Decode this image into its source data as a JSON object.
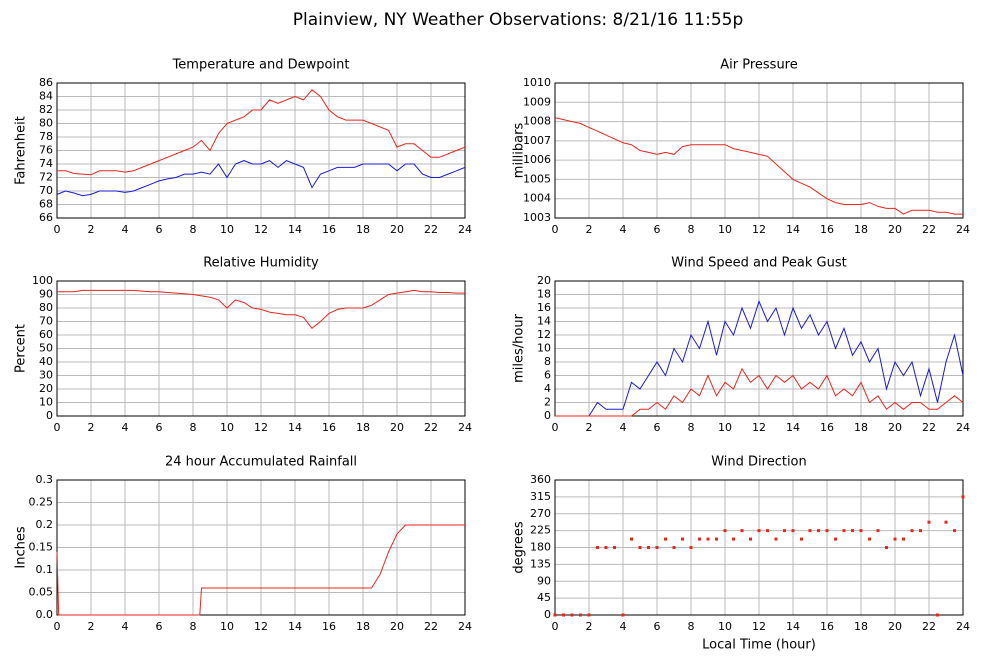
{
  "title": "Plainview, NY Weather Observations: 8/21/16 11:55p",
  "chart_data": [
    {
      "type": "line",
      "title": "Temperature and Dewpoint",
      "ylabel": "Fahrenheit",
      "x": [
        0,
        0.5,
        1,
        1.5,
        2,
        2.5,
        3,
        3.5,
        4,
        4.5,
        5,
        5.5,
        6,
        6.5,
        7,
        7.5,
        8,
        8.5,
        9,
        9.5,
        10,
        10.5,
        11,
        11.5,
        12,
        12.5,
        13,
        13.5,
        14,
        14.5,
        15,
        15.5,
        16,
        16.5,
        17,
        17.5,
        18,
        18.5,
        19,
        19.5,
        20,
        20.5,
        21,
        21.5,
        22,
        22.5,
        23,
        23.5,
        24
      ],
      "series": [
        {
          "color": "#e8261e",
          "values": [
            73,
            73,
            72.6,
            72.5,
            72.4,
            73,
            73,
            73,
            72.8,
            73,
            73.5,
            74,
            74.5,
            75,
            75.5,
            76,
            76.5,
            77.5,
            76,
            78.5,
            80,
            80.5,
            81,
            82,
            82,
            83.5,
            83,
            83.5,
            84,
            83.5,
            85,
            84,
            82,
            81,
            80.5,
            80.5,
            80.5,
            80,
            79.5,
            79,
            76.5,
            77,
            77,
            76,
            75,
            75,
            75.5,
            76,
            76.5
          ]
        },
        {
          "color": "#1a1ad6",
          "values": [
            69.5,
            70,
            69.7,
            69.3,
            69.5,
            70,
            70,
            70,
            69.8,
            70,
            70.5,
            71,
            71.5,
            71.8,
            72,
            72.5,
            72.5,
            72.8,
            72.5,
            74,
            72,
            74,
            74.5,
            74,
            74,
            74.5,
            73.5,
            74.5,
            74,
            73.5,
            70.5,
            72.5,
            73,
            73.5,
            73.5,
            73.5,
            74,
            74,
            74,
            74,
            73,
            74,
            74,
            72.5,
            72,
            72,
            72.5,
            73,
            73.5
          ]
        }
      ],
      "xlim": [
        0,
        24
      ],
      "xticks": [
        0,
        2,
        4,
        6,
        8,
        10,
        12,
        14,
        16,
        18,
        20,
        22,
        24
      ],
      "ylim": [
        66,
        86
      ],
      "yticks": [
        66,
        68,
        70,
        72,
        74,
        76,
        78,
        80,
        82,
        84,
        86
      ],
      "grid": true
    },
    {
      "type": "line",
      "title": "Air Pressure",
      "ylabel": "millibars",
      "x": [
        0,
        0.5,
        1,
        1.5,
        2,
        2.5,
        3,
        3.5,
        4,
        4.5,
        5,
        5.5,
        6,
        6.5,
        7,
        7.5,
        8,
        8.5,
        9,
        9.5,
        10,
        10.5,
        11,
        11.5,
        12,
        12.5,
        13,
        13.5,
        14,
        14.5,
        15,
        15.5,
        16,
        16.5,
        17,
        17.5,
        18,
        18.5,
        19,
        19.5,
        20,
        20.5,
        21,
        21.5,
        22,
        22.5,
        23,
        23.5,
        24
      ],
      "series": [
        {
          "color": "#e8261e",
          "values": [
            1008.2,
            1008.1,
            1008,
            1007.9,
            1007.7,
            1007.5,
            1007.3,
            1007.1,
            1006.9,
            1006.8,
            1006.5,
            1006.4,
            1006.3,
            1006.4,
            1006.3,
            1006.7,
            1006.8,
            1006.8,
            1006.8,
            1006.8,
            1006.8,
            1006.6,
            1006.5,
            1006.4,
            1006.3,
            1006.2,
            1005.8,
            1005.4,
            1005,
            1004.8,
            1004.6,
            1004.3,
            1004,
            1003.8,
            1003.7,
            1003.7,
            1003.7,
            1003.8,
            1003.6,
            1003.5,
            1003.5,
            1003.2,
            1003.4,
            1003.4,
            1003.4,
            1003.3,
            1003.3,
            1003.2,
            1003.2
          ]
        }
      ],
      "xlim": [
        0,
        24
      ],
      "xticks": [
        0,
        2,
        4,
        6,
        8,
        10,
        12,
        14,
        16,
        18,
        20,
        22,
        24
      ],
      "ylim": [
        1003,
        1010
      ],
      "yticks": [
        1003,
        1004,
        1005,
        1006,
        1007,
        1008,
        1009,
        1010
      ],
      "grid": true
    },
    {
      "type": "line",
      "title": "Relative Humidity",
      "ylabel": "Percent",
      "x": [
        0,
        0.5,
        1,
        1.5,
        2,
        2.5,
        3,
        3.5,
        4,
        4.5,
        5,
        5.5,
        6,
        6.5,
        7,
        7.5,
        8,
        8.5,
        9,
        9.5,
        10,
        10.5,
        11,
        11.5,
        12,
        12.5,
        13,
        13.5,
        14,
        14.5,
        15,
        15.5,
        16,
        16.5,
        17,
        17.5,
        18,
        18.5,
        19,
        19.5,
        20,
        20.5,
        21,
        21.5,
        22,
        22.5,
        23,
        23.5,
        24
      ],
      "series": [
        {
          "color": "#e8261e",
          "values": [
            92,
            92,
            92,
            93,
            93,
            93,
            93,
            93,
            93,
            93,
            92.5,
            92,
            92,
            91.5,
            91,
            90.5,
            90,
            89,
            88,
            86,
            80,
            86,
            84,
            80,
            79,
            77,
            76,
            75,
            75,
            73,
            65,
            70,
            76,
            79,
            80,
            80,
            80,
            82,
            86,
            90,
            91,
            92,
            93,
            92,
            92,
            91.5,
            91.5,
            91,
            91
          ]
        }
      ],
      "xlim": [
        0,
        24
      ],
      "xticks": [
        0,
        2,
        4,
        6,
        8,
        10,
        12,
        14,
        16,
        18,
        20,
        22,
        24
      ],
      "ylim": [
        0,
        100
      ],
      "yticks": [
        0,
        10,
        20,
        30,
        40,
        50,
        60,
        70,
        80,
        90,
        100
      ],
      "grid": true
    },
    {
      "type": "line",
      "title": "Wind Speed and Peak Gust",
      "ylabel": "miles/hour",
      "x": [
        0,
        0.5,
        1,
        1.5,
        2,
        2.5,
        3,
        3.5,
        4,
        4.5,
        5,
        5.5,
        6,
        6.5,
        7,
        7.5,
        8,
        8.5,
        9,
        9.5,
        10,
        10.5,
        11,
        11.5,
        12,
        12.5,
        13,
        13.5,
        14,
        14.5,
        15,
        15.5,
        16,
        16.5,
        17,
        17.5,
        18,
        18.5,
        19,
        19.5,
        20,
        20.5,
        21,
        21.5,
        22,
        22.5,
        23,
        23.5,
        24
      ],
      "series": [
        {
          "color": "#1a1ad6",
          "values": [
            0,
            0,
            0,
            0,
            0,
            2,
            1,
            1,
            1,
            5,
            4,
            6,
            8,
            6,
            10,
            8,
            12,
            10,
            14,
            9,
            14,
            12,
            16,
            13,
            17,
            14,
            16,
            12,
            16,
            13,
            15,
            12,
            14,
            10,
            13,
            9,
            11,
            8,
            10,
            4,
            8,
            6,
            8,
            3,
            7,
            2,
            8,
            12,
            6
          ]
        },
        {
          "color": "#e8261e",
          "values": [
            0,
            0,
            0,
            0,
            0,
            0,
            0,
            0,
            0,
            0,
            1,
            1,
            2,
            1,
            3,
            2,
            4,
            3,
            6,
            3,
            5,
            4,
            7,
            5,
            6,
            4,
            6,
            5,
            6,
            4,
            5,
            4,
            6,
            3,
            4,
            3,
            5,
            2,
            3,
            1,
            2,
            1,
            2,
            2,
            1,
            1,
            2,
            3,
            2
          ]
        }
      ],
      "xlim": [
        0,
        24
      ],
      "xticks": [
        0,
        2,
        4,
        6,
        8,
        10,
        12,
        14,
        16,
        18,
        20,
        22,
        24
      ],
      "ylim": [
        0,
        20
      ],
      "yticks": [
        0,
        2,
        4,
        6,
        8,
        10,
        12,
        14,
        16,
        18,
        20
      ],
      "grid": true
    },
    {
      "type": "line",
      "title": "24 hour Accumulated Rainfall",
      "ylabel": "Inches",
      "x": [
        0,
        0.1,
        8.4,
        8.5,
        18.5,
        19,
        19.5,
        20,
        20.5,
        24
      ],
      "series": [
        {
          "color": "#e8261e",
          "values": [
            0.14,
            0,
            0,
            0.06,
            0.06,
            0.09,
            0.14,
            0.18,
            0.2,
            0.2
          ]
        }
      ],
      "xlim": [
        0,
        24
      ],
      "xticks": [
        0,
        2,
        4,
        6,
        8,
        10,
        12,
        14,
        16,
        18,
        20,
        22,
        24
      ],
      "ylim": [
        0,
        0.3
      ],
      "yticks": [
        {
          "value": 0,
          "label": "0.0"
        },
        0.05,
        0.1,
        0.15,
        0.2,
        0.25,
        0.3
      ],
      "grid": true
    },
    {
      "type": "scatter",
      "title": "Wind Direction",
      "ylabel": "degrees",
      "xlabel": "Local Time (hour)",
      "x": [
        0,
        0.5,
        1,
        1.5,
        2,
        2.5,
        3,
        3.5,
        4,
        4.5,
        5,
        5.5,
        6,
        6.5,
        7,
        7.5,
        8,
        8.5,
        9,
        9.5,
        10,
        10.5,
        11,
        11.5,
        12,
        12.5,
        13,
        13.5,
        14,
        14.5,
        15,
        15.5,
        16,
        16.5,
        17,
        17.5,
        18,
        18.5,
        19,
        19.5,
        20,
        20.5,
        21,
        21.5,
        22,
        22.5,
        23,
        23.5,
        24
      ],
      "series": [
        {
          "color": "#e8261e",
          "values": [
            0,
            0,
            0,
            0,
            0,
            180,
            180,
            180,
            0,
            202.5,
            180,
            180,
            180,
            202.5,
            180,
            202.5,
            180,
            202.5,
            202.5,
            202.5,
            225,
            202.5,
            225,
            202.5,
            225,
            225,
            202.5,
            225,
            225,
            202.5,
            225,
            225,
            225,
            202.5,
            225,
            225,
            225,
            202.5,
            225,
            180,
            202.5,
            202.5,
            225,
            225,
            247.5,
            0,
            247.5,
            225,
            315
          ]
        }
      ],
      "xlim": [
        0,
        24
      ],
      "xticks": [
        0,
        2,
        4,
        6,
        8,
        10,
        12,
        14,
        16,
        18,
        20,
        22,
        24
      ],
      "ylim": [
        0,
        360
      ],
      "yticks": [
        0,
        45,
        90,
        135,
        180,
        225,
        270,
        315,
        360
      ],
      "grid": true
    }
  ]
}
